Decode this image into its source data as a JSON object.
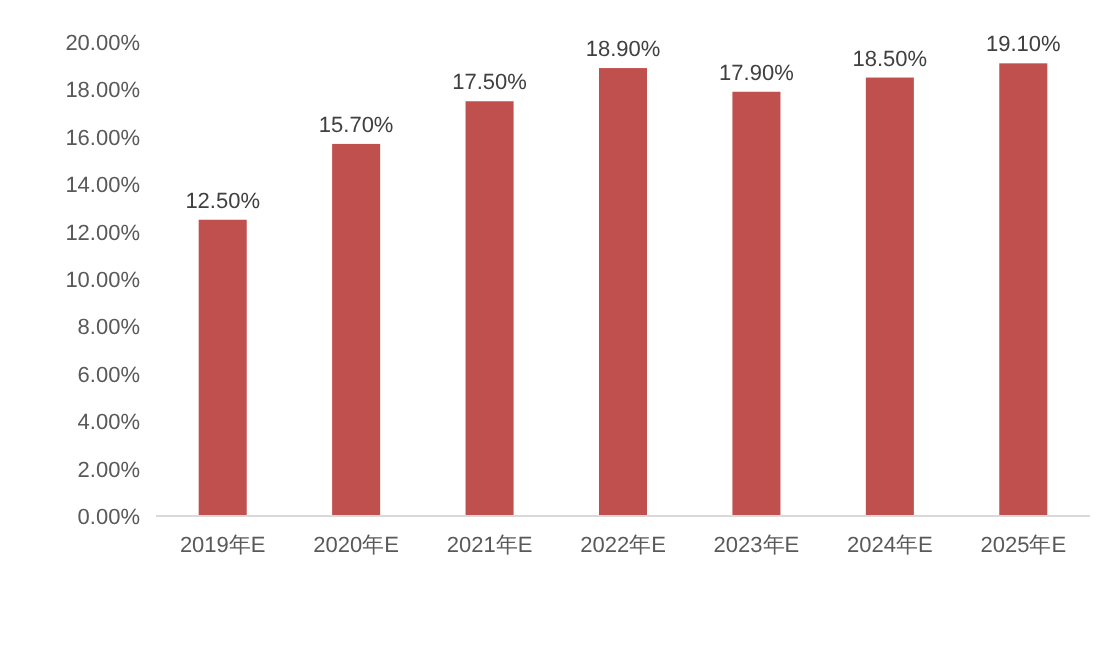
{
  "chart_data": {
    "type": "bar",
    "categories": [
      "2019年E",
      "2020年E",
      "2021年E",
      "2022年E",
      "2023年E",
      "2024年E",
      "2025年E"
    ],
    "values": [
      12.5,
      15.7,
      17.5,
      18.9,
      17.9,
      18.5,
      19.1
    ],
    "value_labels": [
      "12.50%",
      "15.70%",
      "17.50%",
      "18.90%",
      "17.90%",
      "18.50%",
      "19.10%"
    ],
    "color": "#c0504d",
    "ylim": [
      0,
      20
    ],
    "yticks": [
      {
        "value": 0,
        "label": "0.00%"
      },
      {
        "value": 2,
        "label": "2.00%"
      },
      {
        "value": 4,
        "label": "4.00%"
      },
      {
        "value": 6,
        "label": "6.00%"
      },
      {
        "value": 8,
        "label": "8.00%"
      },
      {
        "value": 10,
        "label": "10.00%"
      },
      {
        "value": 12,
        "label": "12.00%"
      },
      {
        "value": 14,
        "label": "14.00%"
      },
      {
        "value": 16,
        "label": "16.00%"
      },
      {
        "value": 18,
        "label": "18.00%"
      },
      {
        "value": 20,
        "label": "20.00%"
      }
    ]
  }
}
